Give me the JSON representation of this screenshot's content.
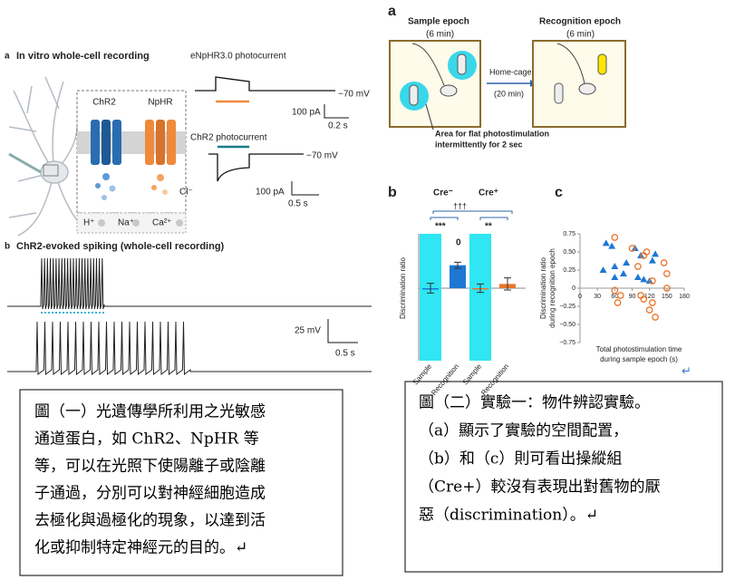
{
  "left_figure": {
    "panel_a": {
      "label": "a",
      "title": "In vitro whole-cell recording",
      "enphr_title": "eNpHR3.0 photocurrent",
      "chr2_title": "ChR2 photocurrent",
      "voltage1": "−70 mV",
      "voltage2": "−70 mV",
      "scale1_y": "100 pA",
      "scale1_x": "0.2 s",
      "scale2_y": "100 pA",
      "scale2_x": "0.5 s",
      "chr2_label": "ChR2",
      "nphr_label": "NpHR",
      "chloride": "Cl⁻",
      "ions": [
        "H⁺",
        "Na⁺",
        "Ca²⁺"
      ]
    },
    "panel_b": {
      "label": "b",
      "title": "ChR2-evoked spiking (whole-cell recording)",
      "scale_y": "25 mV",
      "scale_x": "0.5 s"
    }
  },
  "right_figure": {
    "panel_a": {
      "label": "a",
      "sample": "Sample epoch",
      "sample_time": "(6 min)",
      "recognition": "Recognition epoch",
      "recognition_time": "(6 min)",
      "transfer": "Home-cage",
      "transfer_time": "(20 min)",
      "area_note": [
        "Area for flat photostimulation",
        "intermittently for 2 sec"
      ]
    },
    "panel_b": {
      "label": "b",
      "groups": [
        "Cre⁻",
        "Cre⁺"
      ],
      "y_axis": "Discrimination ratio",
      "stars": [
        "†††",
        "***",
        "**"
      ],
      "zero_mark": "0",
      "x_labels": [
        "Sample",
        "Recognition",
        "Sample",
        "Recognition"
      ],
      "values": [
        0,
        0.38,
        0,
        0.07
      ],
      "errors": [
        0.08,
        0.05,
        0.07,
        0.1
      ],
      "colors": [
        "#1f77d4",
        "#1f77d4",
        "#e8762c",
        "#e8762c"
      ],
      "ylim": [
        -1.2,
        0.9
      ]
    },
    "panel_c": {
      "label": "c",
      "y_axis": [
        "Discrimination ratio",
        "during recognition epoch"
      ],
      "x_axis": [
        "Total photostimulation time",
        "during sample epoch (s)"
      ],
      "xlim": [
        0,
        180
      ],
      "ylim": [
        -0.75,
        0.75
      ],
      "xticks": [
        0,
        30,
        60,
        90,
        120,
        150,
        180
      ],
      "yticks": [
        {
          "value": 0.75,
          "label": "0.75"
        },
        {
          "value": 0.5,
          "label": "0.50"
        },
        {
          "value": 0.25,
          "label": "0.25"
        },
        {
          "value": 0,
          "label": "0"
        },
        {
          "value": -0.25,
          "label": "−0.25"
        },
        {
          "value": -0.5,
          "label": "−0.50"
        },
        {
          "value": -0.75,
          "label": "−0.75"
        }
      ],
      "triangles": {
        "x": [
          45,
          55,
          60,
          40,
          75,
          100,
          110,
          80,
          60,
          105,
          130,
          125,
          120,
          95
        ],
        "y": [
          0.62,
          0.58,
          0.3,
          0.25,
          0.2,
          0.15,
          0.12,
          0.35,
          0.15,
          0.45,
          0.47,
          0.38,
          0.1,
          0.55
        ],
        "color": "#1f77d4"
      },
      "circles": {
        "x": [
          60,
          90,
          110,
          115,
          145,
          150,
          100,
          125,
          60,
          70,
          65,
          105,
          110,
          120,
          130,
          125,
          150
        ],
        "y": [
          0.7,
          0.55,
          0.45,
          0.5,
          0.35,
          0.2,
          0.3,
          0.1,
          -0.03,
          -0.1,
          -0.2,
          -0.1,
          -0.15,
          -0.3,
          -0.4,
          -0.2,
          0
        ],
        "color": "#e8762c"
      },
      "end_mark": "↵"
    }
  },
  "captions": [
    {
      "lines": [
        "圖（一）光遺傳學所利用之光敏感",
        "通道蛋白，如 ChR2、NpHR 等",
        "等，可以在光照下使陽離子或陰離",
        "子通過，分別可以對神經細胞造成",
        "去極化與過極化的現象，以達到活",
        "化或抑制特定神經元的目的。↵"
      ]
    },
    {
      "lines": [
        "圖（二）實驗一：物件辨認實驗。",
        "（a）顯示了實驗的空間配置，",
        "（b）和（c）則可看出操縱組",
        "（Cre+）較沒有表現出對舊物的厭",
        "惡（discrimination）。↵"
      ]
    }
  ]
}
